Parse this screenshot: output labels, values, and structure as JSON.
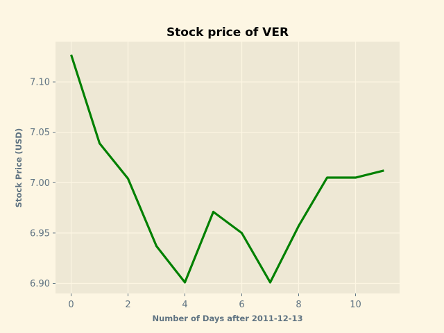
{
  "chart_data": {
    "type": "line",
    "title": "Stock price of VER",
    "xlabel": "Number of Days after 2011-12-13",
    "ylabel": "Stock Price (USD)",
    "x": [
      0,
      1,
      2,
      3,
      4,
      5,
      6,
      7,
      8,
      9,
      10,
      11
    ],
    "series": [
      {
        "values": [
          7.127,
          7.039,
          7.004,
          6.937,
          6.901,
          6.971,
          6.95,
          6.901,
          6.957,
          7.005,
          7.005,
          7.012
        ]
      }
    ],
    "xlim": [
      -0.55,
      11.55
    ],
    "ylim": [
      6.89,
      7.14
    ],
    "xticks": [
      0,
      2,
      4,
      6,
      8,
      10
    ],
    "xtick_labels": [
      "0",
      "2",
      "4",
      "6",
      "8",
      "10"
    ],
    "yticks": [
      6.9,
      6.95,
      7.0,
      7.05,
      7.1
    ],
    "ytick_labels": [
      "6.90",
      "6.95",
      "7.00",
      "7.05",
      "7.10"
    ],
    "grid": true,
    "colors": {
      "line": "#008000",
      "plot_background": "#eee8d5",
      "figure_background": "#fdf6e3",
      "grid": "#fdf6e3",
      "text": "#5f7382"
    }
  }
}
